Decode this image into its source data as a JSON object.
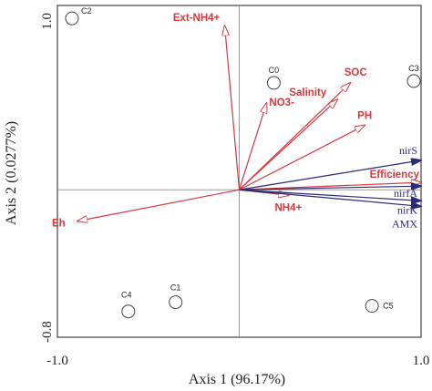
{
  "chart_data": {
    "type": "scatter",
    "xlabel": "Axis 1 (96.17%)",
    "ylabel": "Axis 2 (0.0277%)",
    "xlim": [
      -1.0,
      1.0
    ],
    "ylim": [
      -0.8,
      1.0
    ],
    "x_tick_labels": [
      "-1.0",
      "1.0"
    ],
    "y_tick_labels": [
      "-0.8",
      "1.0"
    ],
    "grid": false,
    "reference_lines": "x=0 and y=0",
    "samples": [
      {
        "name": "C2",
        "x": -0.92,
        "y": 0.93
      },
      {
        "name": "C0",
        "x": 0.19,
        "y": 0.58
      },
      {
        "name": "C3",
        "x": 0.96,
        "y": 0.59
      },
      {
        "name": "C4",
        "x": -0.61,
        "y": -0.66
      },
      {
        "name": "C1",
        "x": -0.35,
        "y": -0.61
      },
      {
        "name": "C5",
        "x": 0.73,
        "y": -0.63
      }
    ],
    "vectors": [
      {
        "name": "Ext-NH4+",
        "x": -0.08,
        "y": 0.89,
        "color": "#d9363e"
      },
      {
        "name": "NO3-",
        "x": 0.15,
        "y": 0.47,
        "color": "#d9363e"
      },
      {
        "name": "Salinity",
        "x": 0.54,
        "y": 0.49,
        "color": "#d9363e"
      },
      {
        "name": "SOC",
        "x": 0.61,
        "y": 0.58,
        "color": "#d9363e"
      },
      {
        "name": "PH",
        "x": 0.69,
        "y": 0.35,
        "color": "#d9363e"
      },
      {
        "name": "Efficiency",
        "x": 1.0,
        "y": 0.04,
        "color": "#d9363e"
      },
      {
        "name": "NH4+",
        "x": 0.27,
        "y": -0.03,
        "color": "#d9363e"
      },
      {
        "name": "Eh",
        "x": -0.89,
        "y": -0.17,
        "color": "#d9363e"
      },
      {
        "name": "nirS",
        "x": 1.0,
        "y": 0.16,
        "color": "#2a2a7a"
      },
      {
        "name": "nirfA",
        "x": 1.0,
        "y": 0.02,
        "color": "#2a2a7a"
      },
      {
        "name": "nirK",
        "x": 1.0,
        "y": -0.06,
        "color": "#2a2a7a"
      },
      {
        "name": "AMX",
        "x": 1.0,
        "y": -0.09,
        "color": "#2a2a7a"
      }
    ]
  }
}
